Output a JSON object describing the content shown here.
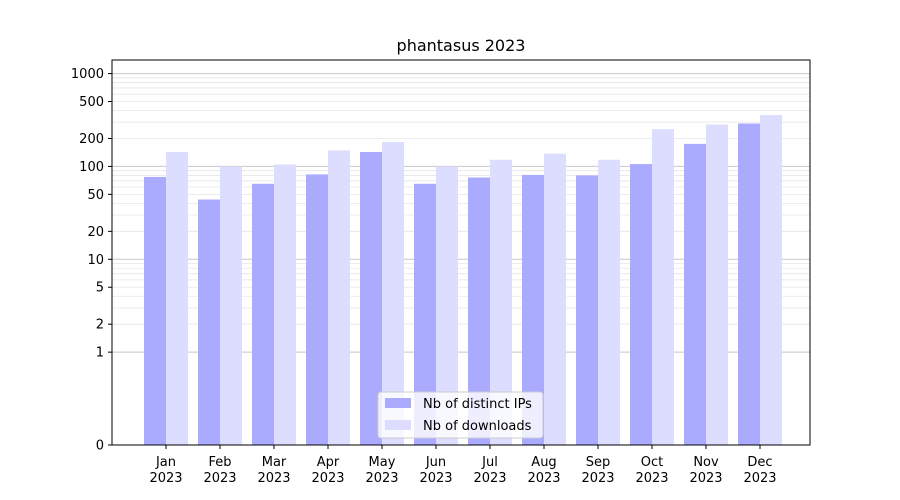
{
  "chart_data": {
    "type": "bar",
    "title": "phantasus 2023",
    "xlabel": "",
    "ylabel": "",
    "yscale": "symlog",
    "ylim": [
      0,
      1400
    ],
    "yticks": [
      0,
      1,
      2,
      5,
      10,
      20,
      50,
      100,
      200,
      500,
      1000
    ],
    "categories": [
      [
        "Jan",
        "2023"
      ],
      [
        "Feb",
        "2023"
      ],
      [
        "Mar",
        "2023"
      ],
      [
        "Apr",
        "2023"
      ],
      [
        "May",
        "2023"
      ],
      [
        "Jun",
        "2023"
      ],
      [
        "Jul",
        "2023"
      ],
      [
        "Aug",
        "2023"
      ],
      [
        "Sep",
        "2023"
      ],
      [
        "Oct",
        "2023"
      ],
      [
        "Nov",
        "2023"
      ],
      [
        "Dec",
        "2023"
      ]
    ],
    "series": [
      {
        "name": "Nb of distinct IPs",
        "color": "#aaaaff",
        "values": [
          77,
          44,
          65,
          82,
          143,
          65,
          76,
          81,
          80,
          106,
          175,
          290
        ]
      },
      {
        "name": "Nb of downloads",
        "color": "#ddddff",
        "values": [
          143,
          100,
          105,
          149,
          183,
          100,
          118,
          137,
          118,
          252,
          283,
          357
        ]
      }
    ],
    "grid": true,
    "legend_position": "bottom-center"
  }
}
